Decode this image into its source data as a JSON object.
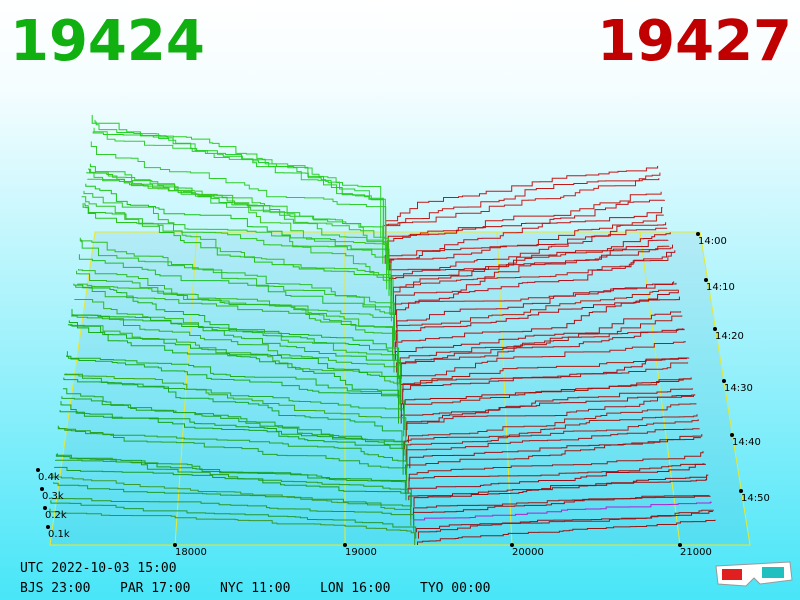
{
  "header": {
    "bid": "19424",
    "ask": "19427"
  },
  "price_axis": [
    "18000",
    "19000",
    "20000",
    "21000"
  ],
  "depth_axis": [
    "0.4k",
    "0.3k",
    "0.2k",
    "0.1k"
  ],
  "time_axis": [
    "14:00",
    "14:10",
    "14:20",
    "14:30",
    "14:40",
    "14:50"
  ],
  "footer": {
    "utc": "UTC 2022-10-03 15:00",
    "zones": [
      "BJS 23:00",
      "PAR 17:00",
      "NYC 11:00",
      "LON 16:00",
      "TYO 00:00"
    ]
  }
}
